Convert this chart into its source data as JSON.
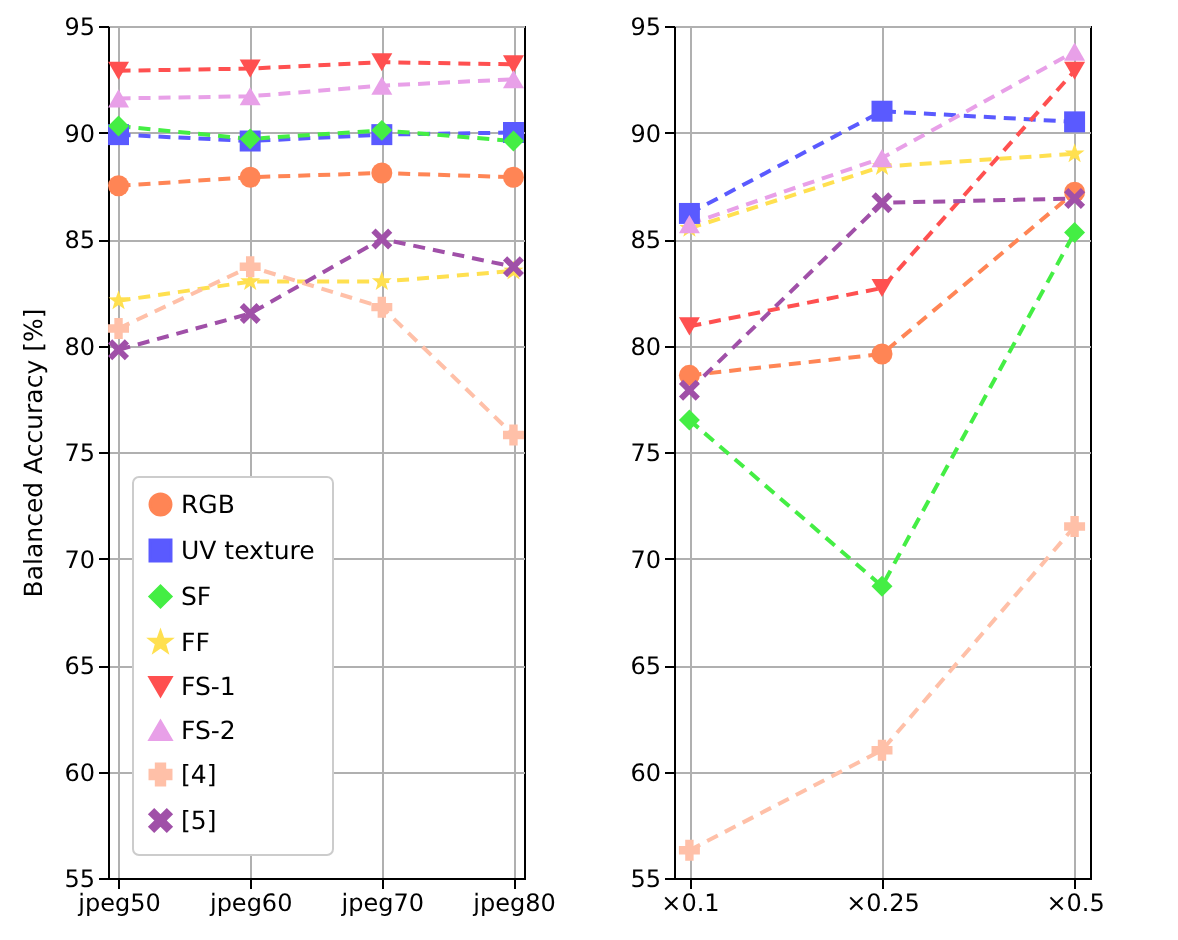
{
  "chart_data": [
    {
      "type": "line",
      "ylabel": "Balanced Accuracy [%]",
      "categories": [
        "jpeg50",
        "jpeg60",
        "jpeg70",
        "jpeg80"
      ],
      "ylim": [
        55,
        95
      ],
      "yticks": [
        55,
        60,
        65,
        70,
        75,
        80,
        85,
        90,
        95
      ],
      "grid": true,
      "legend": "bottom left",
      "line_style": "dashed",
      "series": [
        {
          "name": "RGB",
          "color": "#ff8555",
          "marker": "circle",
          "values": [
            87.5,
            87.9,
            88.1,
            87.9
          ]
        },
        {
          "name": "UV texture",
          "color": "#5a5aff",
          "marker": "square",
          "values": [
            89.9,
            89.6,
            89.9,
            90.0
          ]
        },
        {
          "name": "SF",
          "color": "#44ee44",
          "marker": "diamond",
          "values": [
            90.3,
            89.7,
            90.1,
            89.6
          ]
        },
        {
          "name": "FF",
          "color": "#ffe050",
          "marker": "star",
          "values": [
            82.1,
            83.0,
            83.0,
            83.5
          ]
        },
        {
          "name": "FS-1",
          "color": "#ff5050",
          "marker": "triangle-down",
          "values": [
            92.9,
            93.0,
            93.3,
            93.2
          ]
        },
        {
          "name": "FS-2",
          "color": "#e8a0e8",
          "marker": "triangle",
          "values": [
            91.6,
            91.7,
            92.2,
            92.5
          ]
        },
        {
          "name": "[4]",
          "color": "#ffc0a8",
          "marker": "cross",
          "values": [
            80.8,
            83.7,
            81.8,
            75.8
          ]
        },
        {
          "name": "[5]",
          "color": "#a050a8",
          "marker": "x",
          "values": [
            79.8,
            81.5,
            85.0,
            83.7
          ]
        }
      ]
    },
    {
      "type": "line",
      "categories": [
        "×0.1",
        "×0.25",
        "×0.5"
      ],
      "ylim": [
        55,
        95
      ],
      "yticks": [
        55,
        60,
        65,
        70,
        75,
        80,
        85,
        90,
        95
      ],
      "grid": true,
      "line_style": "dashed",
      "series": [
        {
          "color": "#ff8555",
          "marker": "circle",
          "values": [
            78.6,
            79.6,
            87.2
          ]
        },
        {
          "color": "#5a5aff",
          "marker": "square",
          "values": [
            86.2,
            91.0,
            90.5
          ]
        },
        {
          "color": "#44ee44",
          "marker": "diamond",
          "values": [
            76.5,
            68.7,
            85.3
          ]
        },
        {
          "color": "#ffe050",
          "marker": "star",
          "values": [
            85.5,
            88.4,
            89.0
          ]
        },
        {
          "color": "#ff5050",
          "marker": "triangle-down",
          "values": [
            80.9,
            82.7,
            92.9
          ]
        },
        {
          "color": "#e8a0e8",
          "marker": "triangle",
          "values": [
            85.7,
            88.8,
            93.8
          ]
        },
        {
          "color": "#ffc0a8",
          "marker": "cross",
          "values": [
            56.3,
            61.0,
            71.5
          ]
        },
        {
          "color": "#a050a8",
          "marker": "x",
          "values": [
            77.9,
            86.7,
            86.9
          ]
        }
      ]
    }
  ]
}
